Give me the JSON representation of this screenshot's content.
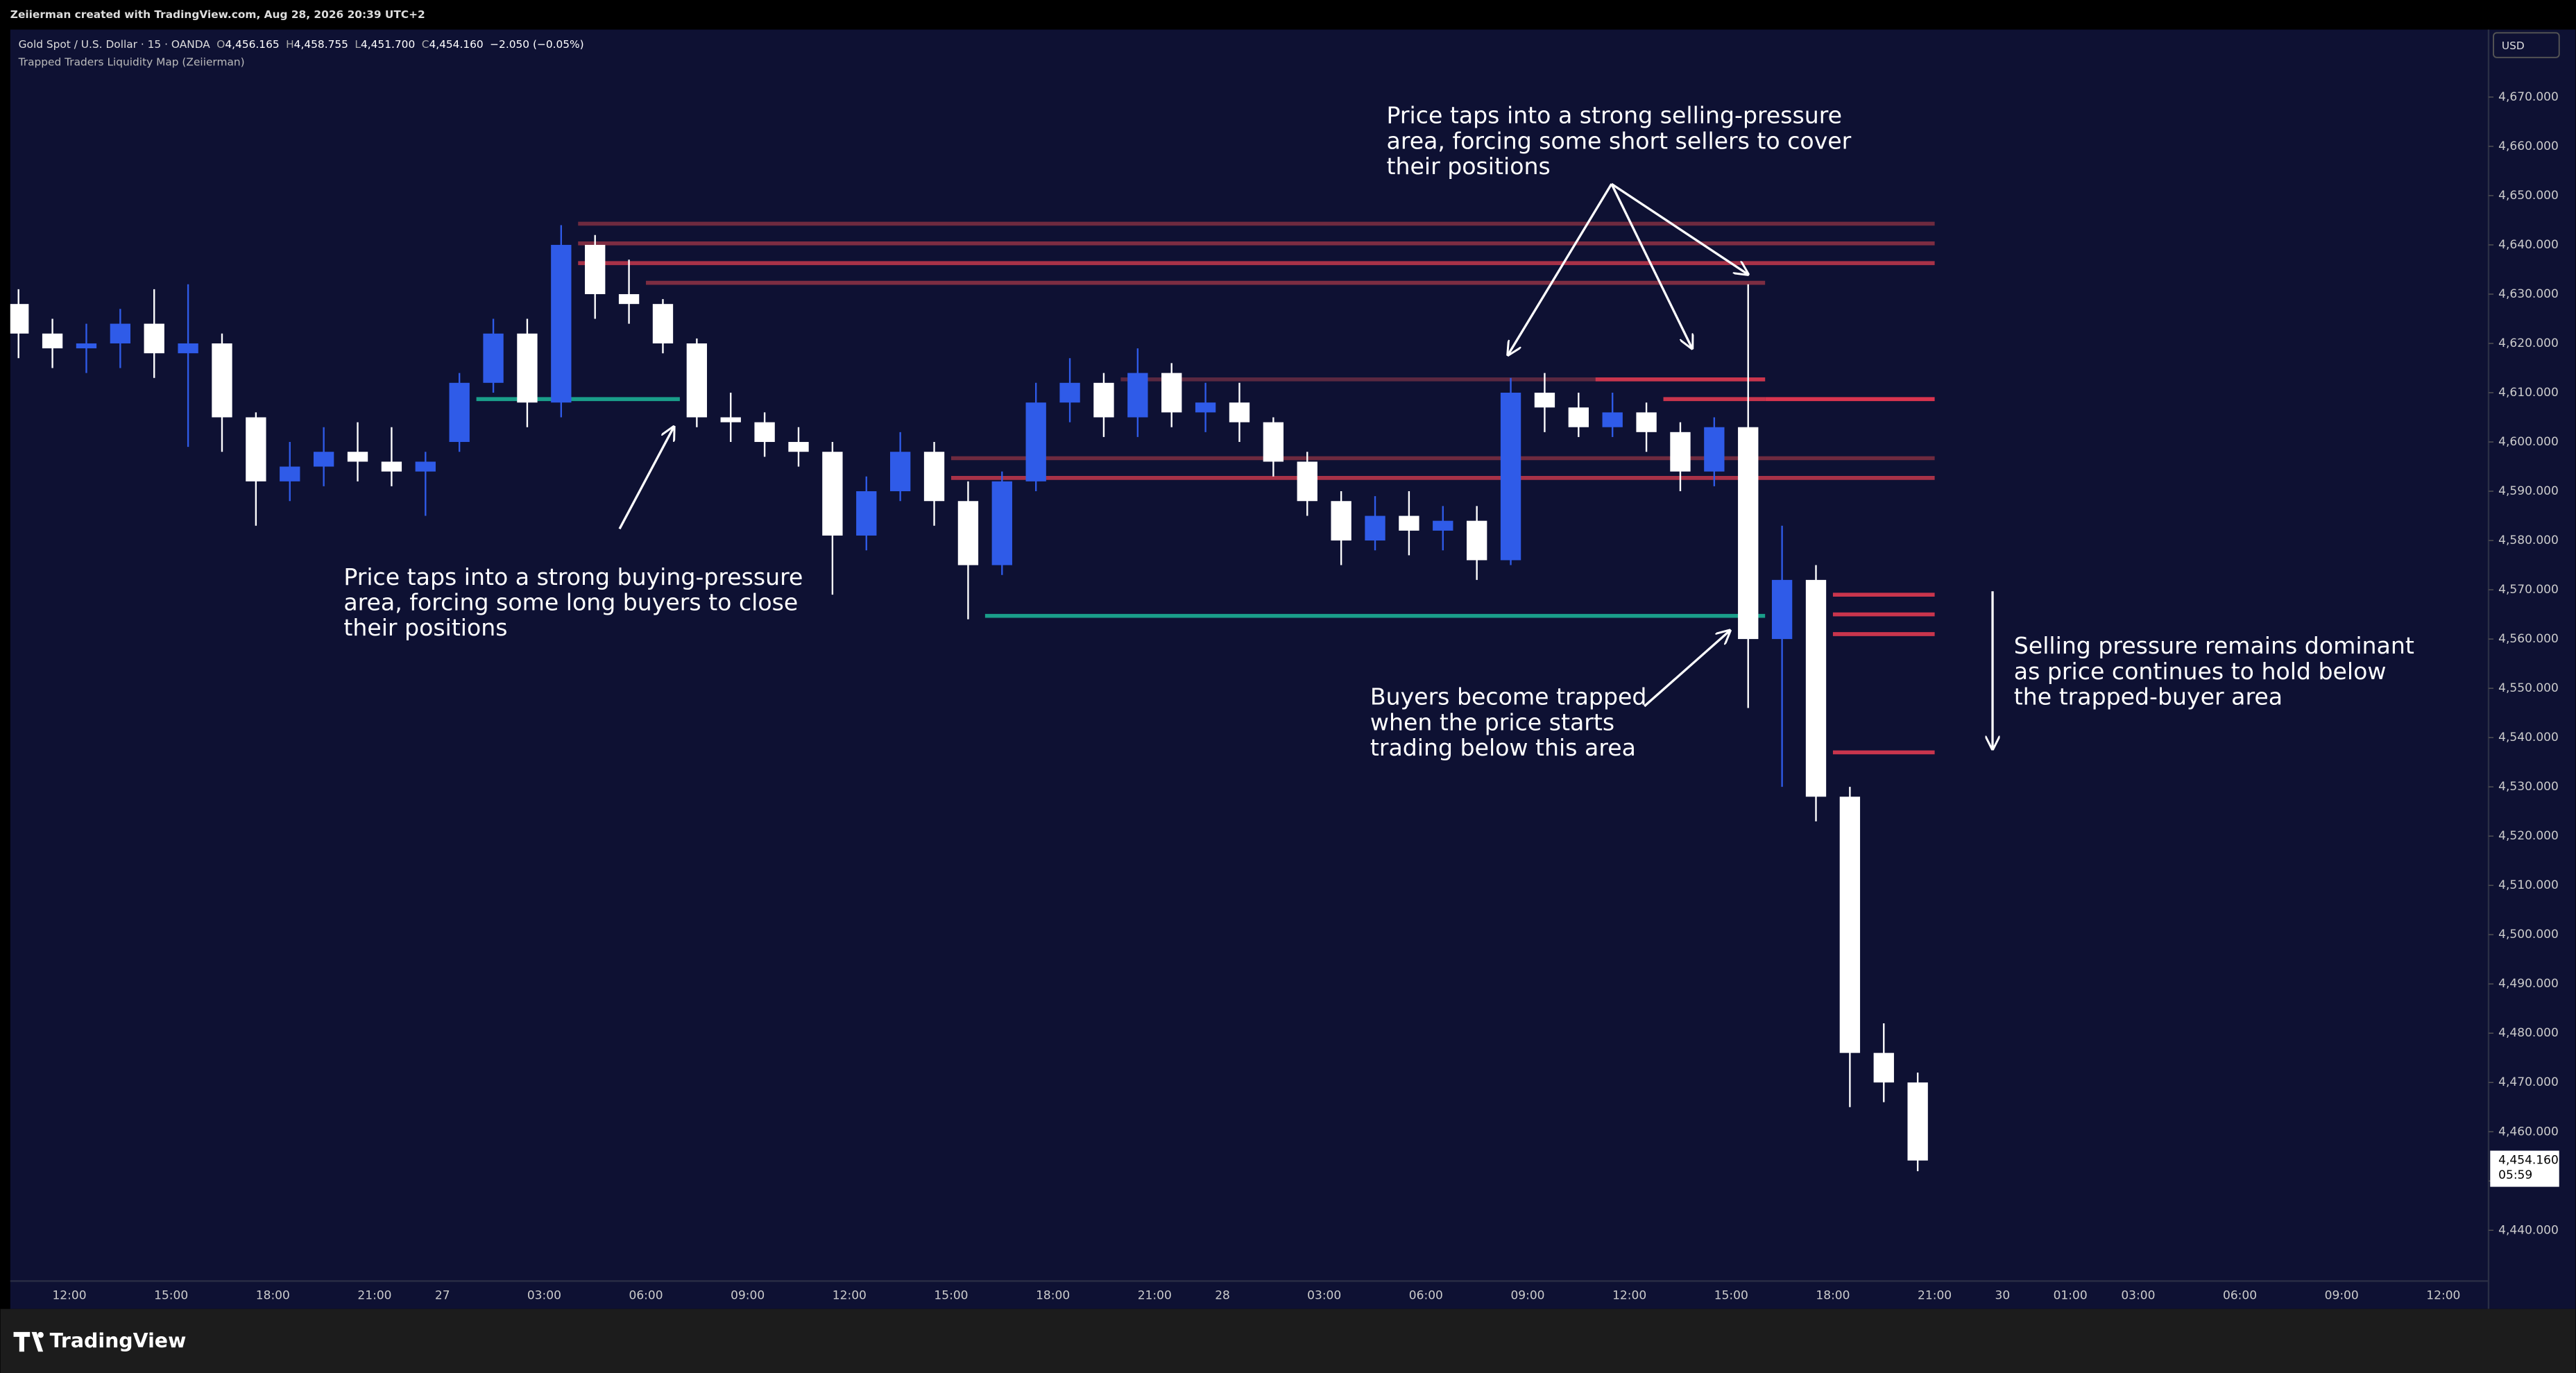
{
  "header": {
    "credit": "Zeiierman created with TradingView.com, Aug 28, 2026 20:39 UTC+2",
    "symbol": "Gold Spot / U.S. Dollar · 15 · OANDA",
    "ohlc": [
      {
        "key": "O",
        "value": "4,456.165"
      },
      {
        "key": "H",
        "value": "4,458.755"
      },
      {
        "key": "L",
        "value": "4,451.700"
      },
      {
        "key": "C",
        "value": "4,454.160"
      }
    ],
    "change": "−2.050 (−0.05%)",
    "indicator": "Trapped Traders Liquidity Map (Zeiierman)",
    "currency": "USD"
  },
  "footer": {
    "brand": "TradingView"
  },
  "chart_data": {
    "type": "candlestick",
    "up_color": "#2f5be8",
    "down_color": "#ffffff",
    "categories": [
      null,
      null,
      "12:00",
      null,
      null,
      "15:00",
      null,
      null,
      "18:00",
      null,
      null,
      "21:00",
      null,
      "27",
      null,
      null,
      "03:00",
      null,
      null,
      "06:00",
      null,
      null,
      "09:00",
      null,
      null,
      "12:00",
      null,
      null,
      "15:00",
      null,
      null,
      "18:00",
      null,
      null,
      "21:00",
      null,
      "28",
      null,
      null,
      "03:00",
      null,
      null,
      "06:00",
      null,
      null,
      "09:00",
      null,
      null,
      "12:00",
      null,
      null,
      "15:00",
      null,
      null,
      "18:00",
      null,
      null,
      "21:00",
      null,
      "30",
      null,
      "01:00",
      null,
      "03:00",
      null,
      null,
      "06:00",
      null,
      null,
      "09:00",
      null,
      null,
      "12:00"
    ],
    "open": [
      4628,
      4622,
      4619,
      4620,
      4624,
      4618,
      4620,
      4605,
      4592,
      4595,
      4598,
      4596,
      4594,
      4600,
      4612,
      4622,
      4608,
      4640,
      4630,
      4628,
      4620,
      4605,
      4604,
      4600,
      4598,
      4581,
      4590,
      4598,
      4588,
      4575,
      4592,
      4608,
      4612,
      4605,
      4614,
      4606,
      4608,
      4604,
      4596,
      4588,
      4580,
      4585,
      4582,
      4584,
      4576,
      4610,
      4607,
      4603,
      4606,
      4602,
      4594,
      4603,
      4560,
      4572,
      4528,
      4476,
      4470,
      null,
      null,
      null,
      null,
      null,
      null,
      null,
      null,
      null,
      null,
      null,
      null,
      null,
      null,
      null,
      null
    ],
    "high": [
      4631,
      4625,
      4624,
      4627,
      4631,
      4632,
      4622,
      4606,
      4600,
      4603,
      4604,
      4603,
      4598,
      4614,
      4625,
      4625,
      4644,
      4642,
      4637,
      4629,
      4621,
      4610,
      4606,
      4603,
      4600,
      4593,
      4602,
      4600,
      4592,
      4594,
      4612,
      4617,
      4614,
      4619,
      4616,
      4612,
      4612,
      4605,
      4598,
      4590,
      4589,
      4590,
      4587,
      4587,
      4613,
      4614,
      4610,
      4610,
      4608,
      4604,
      4605,
      4632,
      4583,
      4575,
      4530,
      4482,
      4472,
      null,
      null,
      null,
      null,
      null,
      null,
      null,
      null,
      null,
      null,
      null,
      null,
      null,
      null,
      null,
      null
    ],
    "low": [
      4617,
      4615,
      4614,
      4615,
      4613,
      4599,
      4598,
      4583,
      4588,
      4591,
      4592,
      4591,
      4585,
      4598,
      4610,
      4603,
      4605,
      4625,
      4624,
      4618,
      4603,
      4600,
      4597,
      4595,
      4569,
      4578,
      4588,
      4583,
      4564,
      4573,
      4590,
      4604,
      4601,
      4601,
      4603,
      4602,
      4600,
      4593,
      4585,
      4575,
      4578,
      4577,
      4578,
      4572,
      4575,
      4602,
      4601,
      4601,
      4598,
      4590,
      4591,
      4546,
      4530,
      4523,
      4465,
      4466,
      4452,
      null,
      null,
      null,
      null,
      null,
      null,
      null,
      null,
      null,
      null,
      null,
      null,
      null,
      null,
      null,
      null
    ],
    "close": [
      4622,
      4619,
      4620,
      4624,
      4618,
      4620,
      4605,
      4592,
      4595,
      4598,
      4596,
      4594,
      4596,
      4612,
      4622,
      4608,
      4640,
      4630,
      4628,
      4620,
      4605,
      4604,
      4600,
      4598,
      4581,
      4590,
      4598,
      4588,
      4575,
      4592,
      4608,
      4612,
      4605,
      4614,
      4606,
      4608,
      4604,
      4596,
      4588,
      4580,
      4585,
      4582,
      4584,
      4576,
      4610,
      4607,
      4603,
      4606,
      4602,
      4594,
      4603,
      4560,
      4572,
      4528,
      4476,
      4470,
      4454.16,
      null,
      null,
      null,
      null,
      null,
      null,
      null,
      null,
      null,
      null,
      null,
      null,
      null,
      null,
      null,
      null
    ],
    "ylim": [
      4429.7,
      4683.7
    ],
    "yticks": [
      {
        "value": 4440,
        "label": "4,440.000"
      },
      {
        "value": 4450,
        "label": "4,450.000"
      },
      {
        "value": 4460,
        "label": "4,460.000"
      },
      {
        "value": 4470,
        "label": "4,470.000"
      },
      {
        "value": 4480,
        "label": "4,480.000"
      },
      {
        "value": 4490,
        "label": "4,490.000"
      },
      {
        "value": 4500,
        "label": "4,500.000"
      },
      {
        "value": 4510,
        "label": "4,510.000"
      },
      {
        "value": 4520,
        "label": "4,520.000"
      },
      {
        "value": 4530,
        "label": "4,530.000"
      },
      {
        "value": 4540,
        "label": "4,540.000"
      },
      {
        "value": 4550,
        "label": "4,550.000"
      },
      {
        "value": 4560,
        "label": "4,560.000"
      },
      {
        "value": 4570,
        "label": "4,570.000"
      },
      {
        "value": 4580,
        "label": "4,580.000"
      },
      {
        "value": 4590,
        "label": "4,590.000"
      },
      {
        "value": 4600,
        "label": "4,600.000"
      },
      {
        "value": 4610,
        "label": "4,610.000"
      },
      {
        "value": 4620,
        "label": "4,620.000"
      },
      {
        "value": 4630,
        "label": "4,630.000"
      },
      {
        "value": 4640,
        "label": "4,640.000"
      },
      {
        "value": 4650,
        "label": "4,650.000"
      },
      {
        "value": 4660,
        "label": "4,660.000"
      },
      {
        "value": 4670,
        "label": "4,670.000"
      }
    ],
    "last_label": "4,454.160",
    "countdown": "05:59",
    "levels": [
      {
        "price": 4644.3,
        "from": 17,
        "to": 57,
        "color": "#6e2a3f"
      },
      {
        "price": 4640.3,
        "from": 17,
        "to": 57,
        "color": "#7d2d42"
      },
      {
        "price": 4636.3,
        "from": 17,
        "to": 57,
        "color": "#a83248"
      },
      {
        "price": 4632.3,
        "from": 19,
        "to": 52,
        "color": "#7d2d42"
      },
      {
        "price": 4612.7,
        "from": 33,
        "to": 52,
        "color": "#5a2840"
      },
      {
        "price": 4612.7,
        "from": 47,
        "to": 52,
        "color": "#c9354d"
      },
      {
        "price": 4608.7,
        "from": 52,
        "to": 57,
        "color": "#d9344f"
      },
      {
        "price": 4608.7,
        "from": 49,
        "to": 52,
        "color": "#c9354d"
      },
      {
        "price": 4596.7,
        "from": 28,
        "to": 57,
        "color": "#6e2a3f"
      },
      {
        "price": 4592.7,
        "from": 28,
        "to": 57,
        "color": "#a83248"
      },
      {
        "price": 4569,
        "from": 54,
        "to": 57,
        "color": "#c9354d"
      },
      {
        "price": 4565,
        "from": 54,
        "to": 57,
        "color": "#c9354d"
      },
      {
        "price": 4561,
        "from": 54,
        "to": 57,
        "color": "#c9354d"
      },
      {
        "price": 4537,
        "from": 54,
        "to": 57,
        "color": "#c9354d"
      },
      {
        "price": 4608.7,
        "from": 14,
        "to": 20,
        "color": "#1a9e8a"
      },
      {
        "price": 4564.7,
        "from": 29,
        "to": 52,
        "color": "#1a9e8a"
      }
    ],
    "annotations": [
      {
        "lines": [
          "Price taps into a strong selling-pressure",
          "area, forcing some short sellers to cover",
          "their positions"
        ]
      },
      {
        "lines": [
          "Price taps into a strong buying-pressure",
          "area, forcing some long buyers to close",
          "their positions"
        ]
      },
      {
        "lines": [
          "Buyers become trapped",
          "when the price starts",
          "trading below this area"
        ]
      },
      {
        "lines": [
          "Selling pressure remains dominant",
          "as price continues to hold below",
          "the trapped-buyer area"
        ]
      }
    ]
  }
}
